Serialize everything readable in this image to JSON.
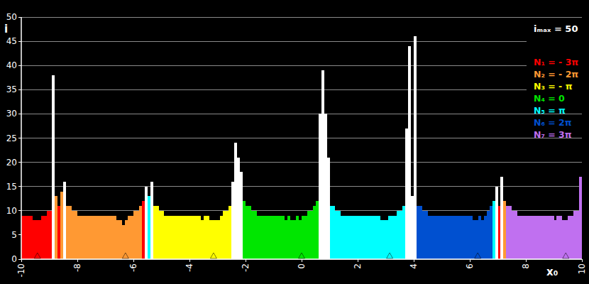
{
  "chart_data": {
    "type": "bar",
    "xlabel": "x₀",
    "ylabel": "i",
    "xlim": [
      -10,
      10
    ],
    "ylim": [
      0,
      50
    ],
    "xticks": [
      -10,
      -8,
      -6,
      -4,
      -2,
      0,
      2,
      4,
      6,
      8,
      10
    ],
    "yticks": [
      0,
      5,
      10,
      15,
      20,
      25,
      30,
      35,
      40,
      45,
      50
    ],
    "grid": true,
    "legend": "upper right",
    "tick_labels": true,
    "annotations": [
      {
        "text": "iₘₐₓ = 50"
      }
    ],
    "series": [
      {
        "name": "N₁ = - 3π",
        "color": "#ff0000",
        "root": -9.4248,
        "x": [
          -9.95,
          -9.85,
          -9.75,
          -9.65,
          -9.55,
          -9.45,
          -9.35,
          -9.25,
          -9.15,
          -9.05,
          -8.95,
          -8.65,
          -5.65,
          7.05
        ],
        "values": [
          9,
          9,
          9,
          9,
          8,
          8,
          8,
          9,
          9,
          10,
          10,
          11,
          12,
          11
        ]
      },
      {
        "name": "N₂ = - 2π",
        "color": "#ff9933",
        "root": -6.2832,
        "x": [
          -8.75,
          -8.55,
          -8.35,
          -8.25,
          -8.15,
          -8.05,
          -7.95,
          -7.85,
          -7.75,
          -7.65,
          -7.55,
          -7.45,
          -7.35,
          -7.25,
          -7.15,
          -7.05,
          -6.95,
          -6.85,
          -6.75,
          -6.65,
          -6.55,
          -6.45,
          -6.35,
          -6.25,
          -6.15,
          -6.05,
          -5.95,
          -5.85,
          -5.75,
          7.25
        ],
        "values": [
          13,
          14,
          11,
          11,
          10,
          10,
          9,
          9,
          9,
          9,
          9,
          9,
          9,
          9,
          9,
          9,
          9,
          9,
          9,
          9,
          8,
          8,
          7,
          8,
          9,
          9,
          10,
          10,
          11,
          12
        ]
      },
      {
        "name": "N₃ = - π",
        "color": "#ffff00",
        "root": -3.1416,
        "x": [
          -5.25,
          -5.15,
          -5.05,
          -4.95,
          -4.85,
          -4.75,
          -4.65,
          -4.55,
          -4.45,
          -4.35,
          -4.25,
          -4.15,
          -4.05,
          -3.95,
          -3.85,
          -3.75,
          -3.65,
          -3.55,
          -3.45,
          -3.35,
          -3.25,
          -3.15,
          -3.05,
          -2.95,
          -2.85,
          -2.75,
          -2.65,
          -2.55
        ],
        "values": [
          11,
          11,
          10,
          10,
          9,
          9,
          9,
          9,
          9,
          9,
          9,
          9,
          9,
          9,
          9,
          9,
          9,
          8,
          9,
          9,
          8,
          8,
          8,
          8,
          9,
          10,
          10,
          11
        ]
      },
      {
        "name": "N₄ = 0",
        "color": "#00e600",
        "root": 0,
        "x": [
          -2.05,
          -1.95,
          -1.85,
          -1.75,
          -1.65,
          -1.55,
          -1.45,
          -1.35,
          -1.25,
          -1.15,
          -1.05,
          -0.95,
          -0.85,
          -0.75,
          -0.65,
          -0.55,
          -0.45,
          -0.35,
          -0.25,
          -0.15,
          -0.05,
          0.05,
          0.15,
          0.25,
          0.35,
          0.45,
          0.55
        ],
        "values": [
          12,
          11,
          11,
          10,
          10,
          9,
          9,
          9,
          9,
          9,
          9,
          9,
          9,
          9,
          9,
          8,
          9,
          8,
          8,
          9,
          8,
          9,
          9,
          10,
          10,
          11,
          12
        ]
      },
      {
        "name": "N₅ = π",
        "color": "#00ffff",
        "root": 3.1416,
        "x": [
          -5.45,
          1.05,
          1.15,
          1.25,
          1.35,
          1.45,
          1.55,
          1.65,
          1.75,
          1.85,
          1.95,
          2.05,
          2.15,
          2.25,
          2.35,
          2.45,
          2.55,
          2.65,
          2.75,
          2.85,
          2.95,
          3.05,
          3.15,
          3.25,
          3.35,
          3.45,
          3.55,
          3.65,
          6.85
        ],
        "values": [
          13,
          11,
          11,
          10,
          10,
          9,
          9,
          9,
          9,
          9,
          9,
          9,
          9,
          9,
          9,
          9,
          9,
          9,
          9,
          8,
          8,
          8,
          9,
          9,
          9,
          10,
          10,
          11,
          12
        ]
      },
      {
        "name": "N₆ = 2π",
        "color": "#0050d0",
        "root": 6.2832,
        "x": [
          4.15,
          4.25,
          4.35,
          4.45,
          4.55,
          4.65,
          4.75,
          4.85,
          4.95,
          5.05,
          5.15,
          5.25,
          5.35,
          5.45,
          5.55,
          5.65,
          5.75,
          5.85,
          5.95,
          6.05,
          6.15,
          6.25,
          6.35,
          6.45,
          6.55,
          6.65,
          6.75
        ],
        "values": [
          11,
          11,
          10,
          10,
          9,
          9,
          9,
          9,
          9,
          9,
          9,
          9,
          9,
          9,
          9,
          9,
          9,
          9,
          9,
          9,
          8,
          8,
          9,
          8,
          9,
          10,
          11
        ]
      },
      {
        "name": "N₇ = 3π",
        "color": "#c070f0",
        "root": 9.4248,
        "x": [
          7.35,
          7.45,
          7.55,
          7.65,
          7.75,
          7.85,
          7.95,
          8.05,
          8.15,
          8.25,
          8.35,
          8.45,
          8.55,
          8.65,
          8.75,
          8.85,
          8.95,
          9.05,
          9.15,
          9.25,
          9.35,
          9.45,
          9.55,
          9.65,
          9.75,
          9.85,
          9.95
        ],
        "values": [
          11,
          11,
          10,
          10,
          9,
          9,
          9,
          9,
          9,
          9,
          9,
          9,
          9,
          9,
          9,
          9,
          9,
          8,
          9,
          9,
          8,
          8,
          9,
          9,
          10,
          10,
          17
        ]
      },
      {
        "color": "#ffffff",
        "x": [
          -8.85,
          -8.45,
          -5.55,
          -5.35,
          -2.45,
          -2.35,
          -2.25,
          -2.15,
          0.65,
          0.75,
          0.85,
          0.95,
          3.75,
          3.85,
          3.95,
          4.05,
          6.95,
          7.15
        ],
        "values": [
          38,
          16,
          15,
          16,
          16,
          24,
          21,
          18,
          30,
          39,
          30,
          21,
          27,
          44,
          13,
          46,
          15,
          17
        ]
      }
    ]
  }
}
